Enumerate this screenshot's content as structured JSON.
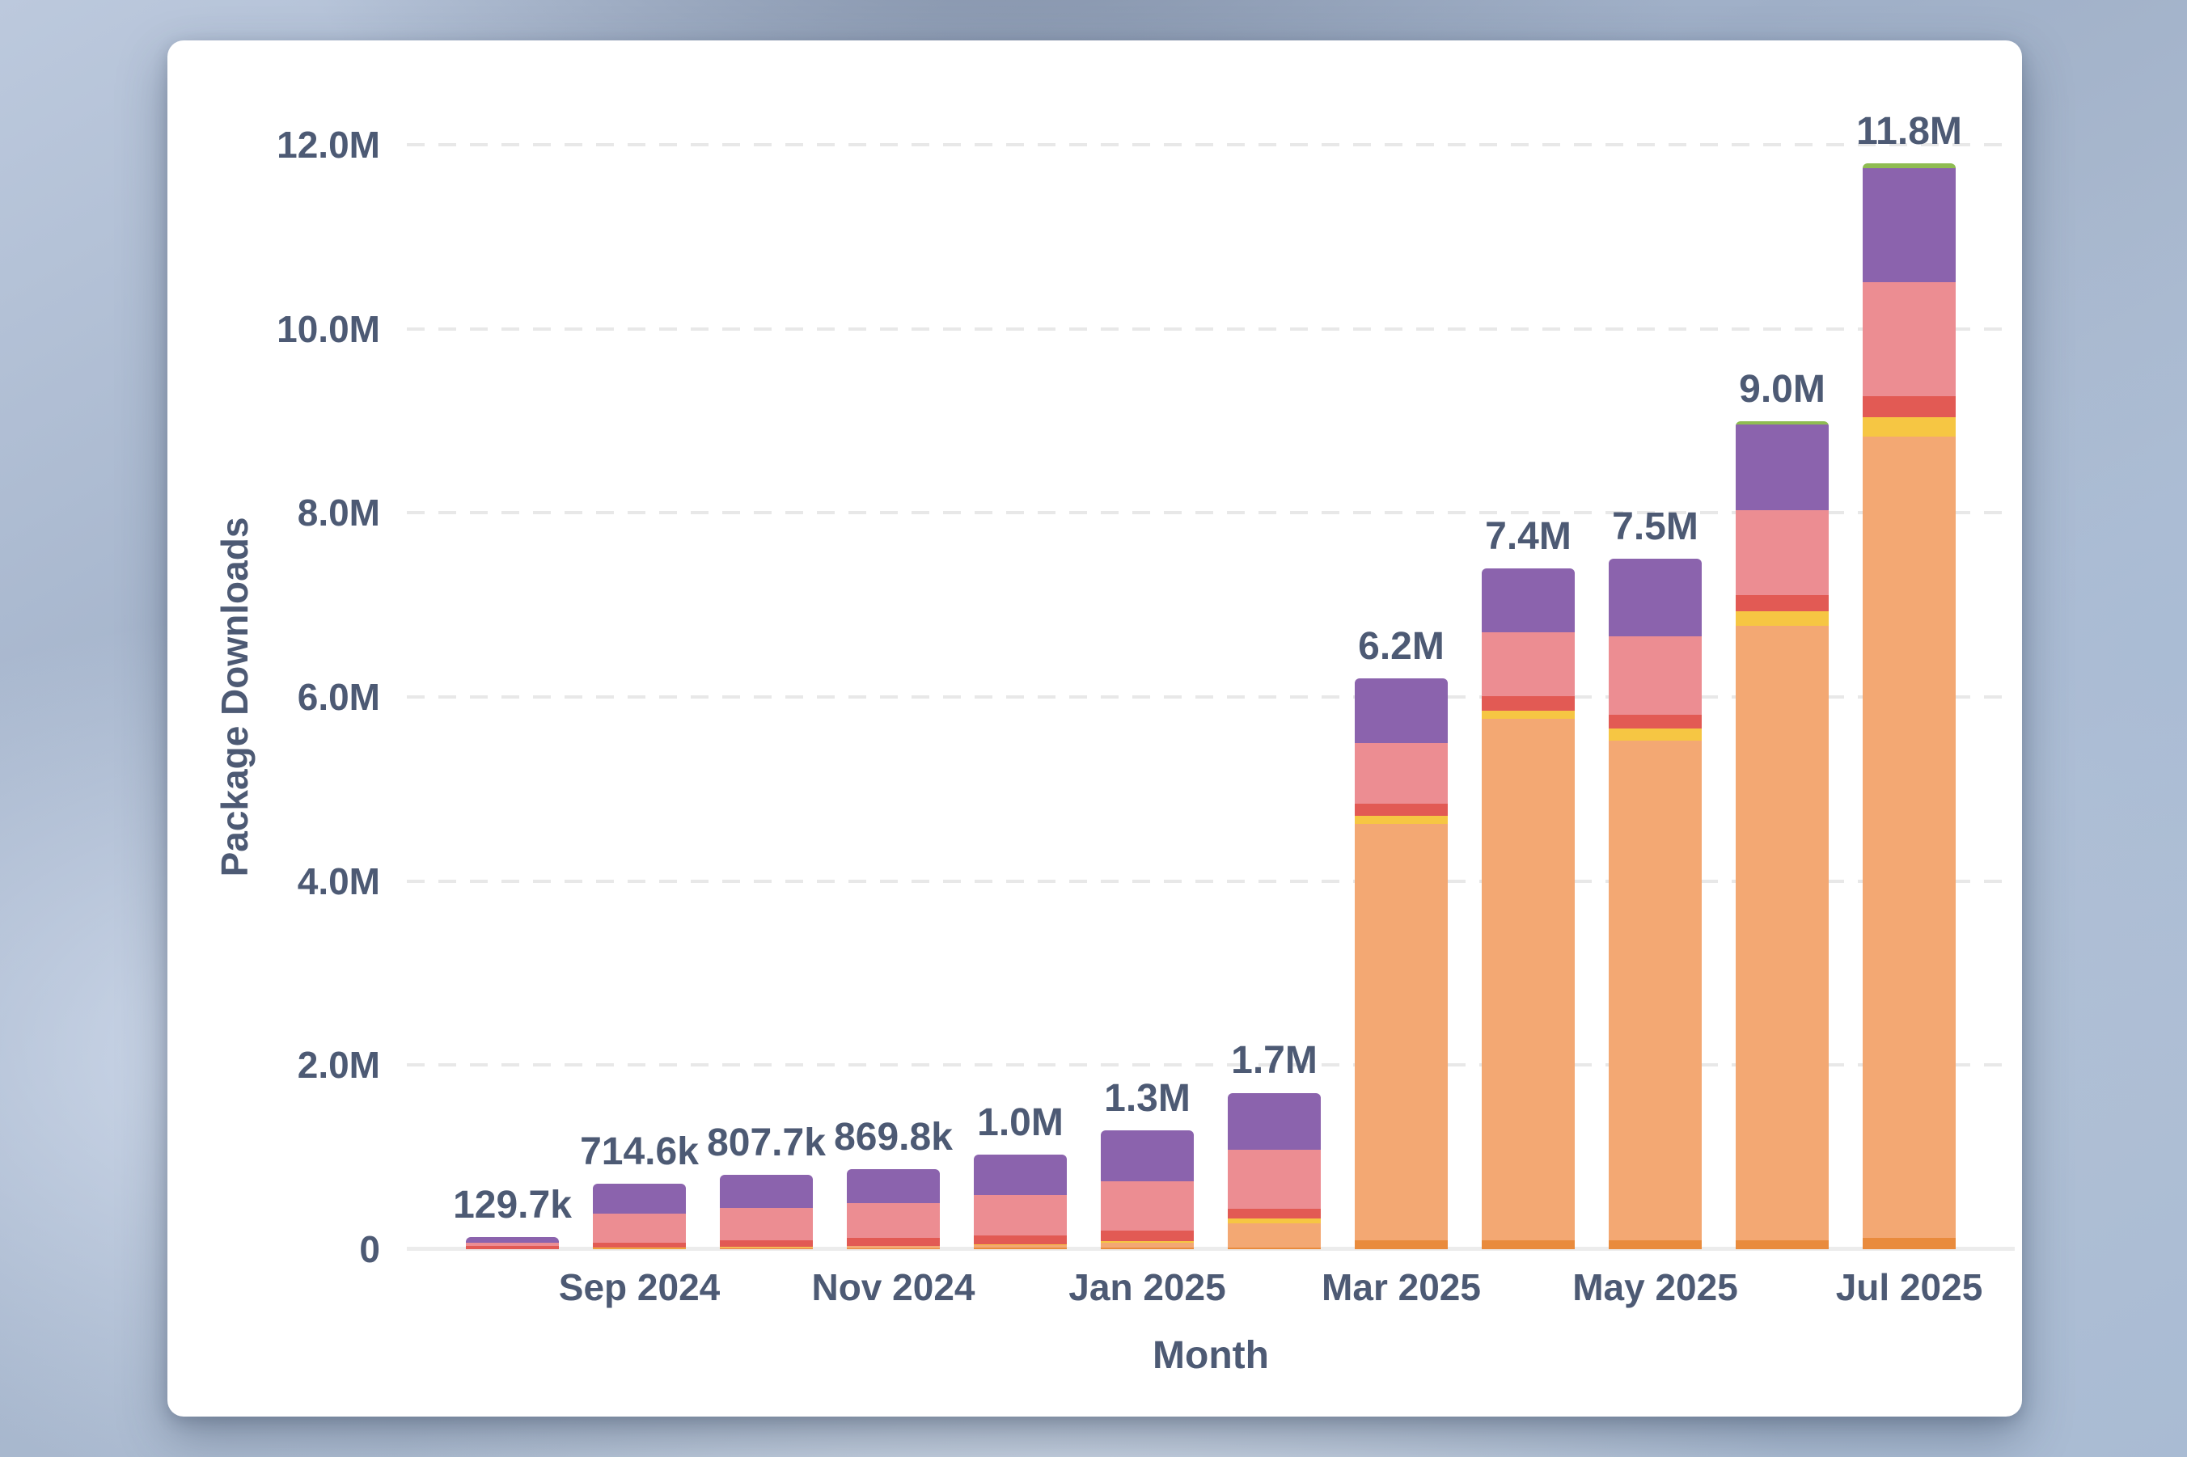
{
  "chart_data": {
    "type": "bar",
    "stacked": true,
    "title": "",
    "xlabel": "Month",
    "ylabel": "Package Downloads",
    "legend": "none",
    "grid": {
      "horizontal": true,
      "style": "dashed",
      "color": "#e8e8e8"
    },
    "text_color": "#4d5a74",
    "ylim_millions": [
      0,
      12
    ],
    "yticks": [
      {
        "value_m": 0,
        "label": "0"
      },
      {
        "value_m": 2,
        "label": "2.0M"
      },
      {
        "value_m": 4,
        "label": "4.0M"
      },
      {
        "value_m": 6,
        "label": "6.0M"
      },
      {
        "value_m": 8,
        "label": "8.0M"
      },
      {
        "value_m": 10,
        "label": "10.0M"
      },
      {
        "value_m": 12,
        "label": "12.0M"
      }
    ],
    "categories": [
      "",
      "Sep 2024",
      "",
      "Nov 2024",
      "",
      "Jan 2025",
      "",
      "Mar 2025",
      "",
      "May 2025",
      "",
      "Jul 2025"
    ],
    "bar_total_labels": [
      "129.7k",
      "714.6k",
      "807.7k",
      "869.8k",
      "1.0M",
      "1.3M",
      "1.7M",
      "6.2M",
      "7.4M",
      "7.5M",
      "9.0M",
      "11.8M"
    ],
    "series": [
      {
        "name": "dark-orange",
        "color": "#e98b3d",
        "values_m": [
          0,
          0.005,
          0.008,
          0.012,
          0.015,
          0.02,
          0.02,
          0.1,
          0.1,
          0.1,
          0.1,
          0.12
        ]
      },
      {
        "name": "orange",
        "color": "#f3a873",
        "values_m": [
          0.002,
          0.008,
          0.012,
          0.02,
          0.025,
          0.05,
          0.26,
          4.52,
          5.66,
          5.43,
          6.67,
          8.71
        ]
      },
      {
        "name": "yellow",
        "color": "#f6c643",
        "values_m": [
          0.001,
          0.003,
          0.005,
          0.005,
          0.01,
          0.02,
          0.05,
          0.09,
          0.09,
          0.13,
          0.16,
          0.21
        ]
      },
      {
        "name": "red",
        "color": "#e25a54",
        "values_m": [
          0.031,
          0.055,
          0.068,
          0.088,
          0.1,
          0.11,
          0.11,
          0.13,
          0.16,
          0.15,
          0.18,
          0.23
        ]
      },
      {
        "name": "pink",
        "color": "#ec8d92",
        "values_m": [
          0.038,
          0.32,
          0.355,
          0.375,
          0.44,
          0.54,
          0.64,
          0.66,
          0.69,
          0.85,
          0.92,
          1.24
        ]
      },
      {
        "name": "purple",
        "color": "#8b63ad",
        "values_m": [
          0.058,
          0.32,
          0.36,
          0.37,
          0.44,
          0.55,
          0.62,
          0.7,
          0.7,
          0.84,
          0.93,
          1.24
        ]
      },
      {
        "name": "green",
        "color": "#8fbc52",
        "values_m": [
          0,
          0,
          0,
          0,
          0,
          0,
          0,
          0,
          0,
          0,
          0.04,
          0.05
        ]
      }
    ]
  }
}
